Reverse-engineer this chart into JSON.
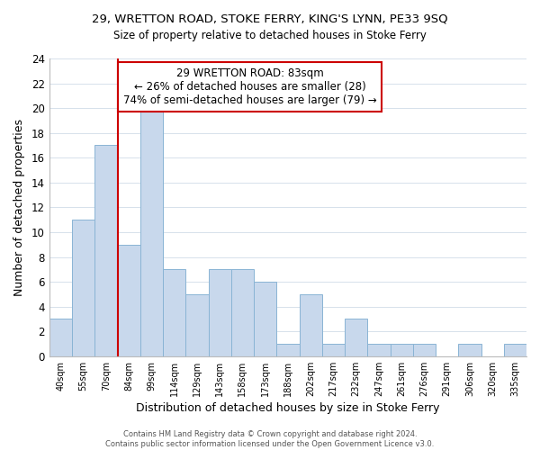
{
  "title1": "29, WRETTON ROAD, STOKE FERRY, KING'S LYNN, PE33 9SQ",
  "title2": "Size of property relative to detached houses in Stoke Ferry",
  "xlabel": "Distribution of detached houses by size in Stoke Ferry",
  "ylabel": "Number of detached properties",
  "bin_labels": [
    "40sqm",
    "55sqm",
    "70sqm",
    "84sqm",
    "99sqm",
    "114sqm",
    "129sqm",
    "143sqm",
    "158sqm",
    "173sqm",
    "188sqm",
    "202sqm",
    "217sqm",
    "232sqm",
    "247sqm",
    "261sqm",
    "276sqm",
    "291sqm",
    "306sqm",
    "320sqm",
    "335sqm"
  ],
  "bar_values": [
    3,
    11,
    17,
    9,
    20,
    7,
    5,
    7,
    7,
    6,
    1,
    5,
    1,
    3,
    1,
    1,
    1,
    0,
    1,
    0,
    1
  ],
  "bar_color": "#c8d8ec",
  "bar_edge_color": "#8ab4d4",
  "vline_index": 3,
  "vline_color": "#cc0000",
  "ylim": [
    0,
    24
  ],
  "yticks": [
    0,
    2,
    4,
    6,
    8,
    10,
    12,
    14,
    16,
    18,
    20,
    22,
    24
  ],
  "annotation_title": "29 WRETTON ROAD: 83sqm",
  "annotation_line1": "← 26% of detached houses are smaller (28)",
  "annotation_line2": "74% of semi-detached houses are larger (79) →",
  "annotation_box_color": "#ffffff",
  "annotation_box_edge": "#cc0000",
  "footer1": "Contains HM Land Registry data © Crown copyright and database right 2024.",
  "footer2": "Contains public sector information licensed under the Open Government Licence v3.0."
}
